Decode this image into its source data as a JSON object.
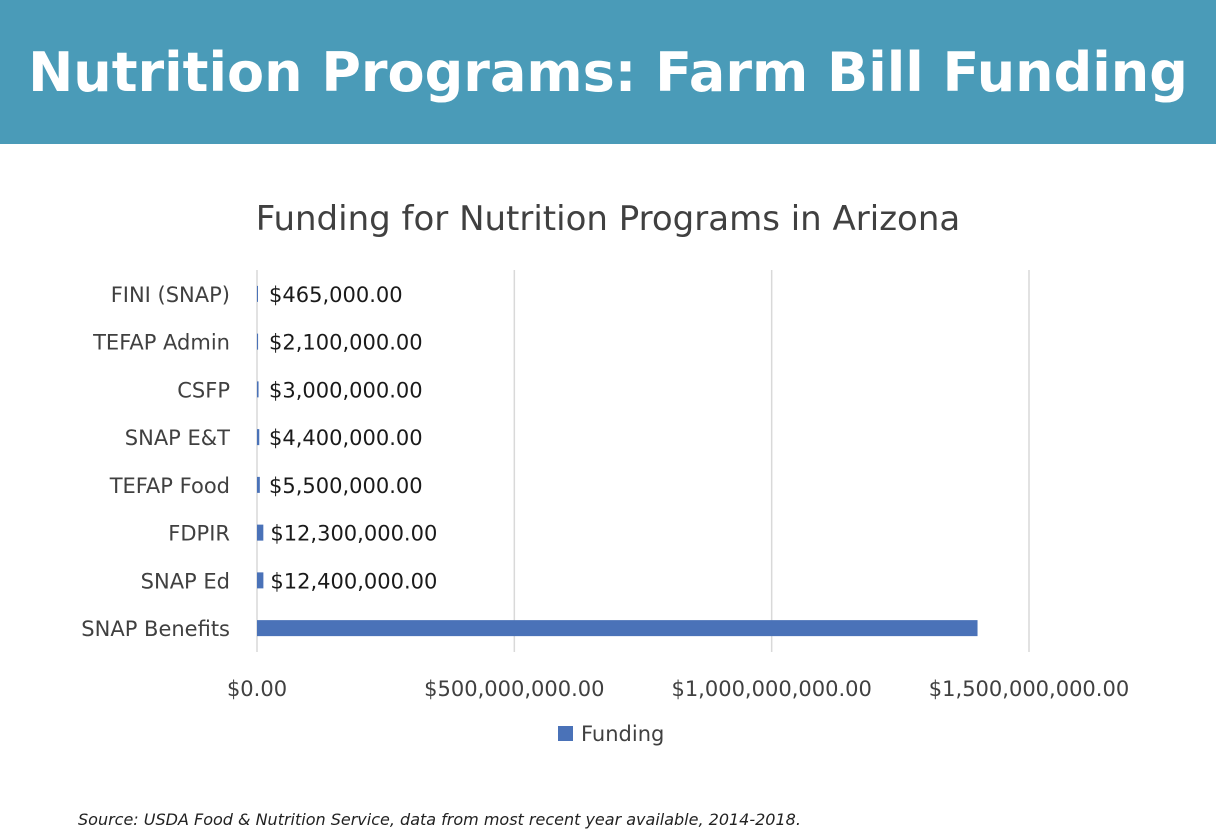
{
  "header": {
    "title": "Nutrition Programs: Farm Bill Funding"
  },
  "footer": {
    "source": "Source: USDA Food & Nutrition Service, data from most recent year available, 2014-2018."
  },
  "colors": {
    "banner": "#4a9bb8",
    "bar": "#4a72b8",
    "grid": "#d9d9d9",
    "text": "#404040"
  },
  "chart_data": {
    "type": "bar",
    "orientation": "horizontal",
    "title": "Funding for Nutrition Programs in Arizona",
    "xlabel": "",
    "ylabel": "",
    "categories": [
      "FINI (SNAP)",
      "TEFAP Admin",
      "CSFP",
      "SNAP E&T",
      "TEFAP Food",
      "FDPIR",
      "SNAP Ed",
      "SNAP Benefits"
    ],
    "series": [
      {
        "name": "Funding",
        "values": [
          465000,
          2100000,
          3000000,
          4400000,
          5500000,
          12300000,
          12400000,
          1400000000
        ],
        "data_labels": [
          "$465,000.00",
          "$2,100,000.00",
          "$3,000,000.00",
          "$4,400,000.00",
          "$5,500,000.00",
          "$12,300,000.00",
          "$12,400,000.00",
          ""
        ]
      }
    ],
    "xlim": [
      0,
      1500000000
    ],
    "xticks": [
      0,
      500000000,
      1000000000,
      1500000000
    ],
    "xtick_labels": [
      "$0.00",
      "$500,000,000.00",
      "$1,000,000,000.00",
      "$1,500,000,000.00"
    ],
    "grid": true,
    "legend": {
      "position": "bottom",
      "entries": [
        "Funding"
      ]
    }
  }
}
